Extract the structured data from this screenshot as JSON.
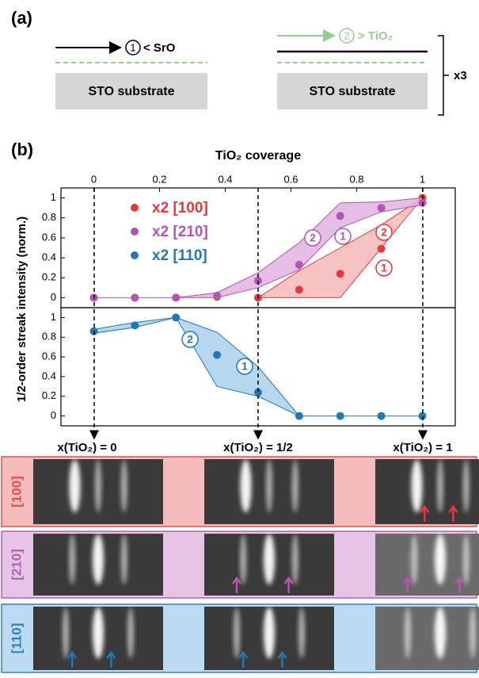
{
  "panel_a": {
    "label": "(a)",
    "step1_number": "1",
    "step1_text": "< SrO",
    "step2_number": "2",
    "step2_text": "> TiO₂",
    "substrate": "STO substrate",
    "repeat": "x3"
  },
  "label_b": "(b)",
  "annotations": {
    "sweep1": "1",
    "sweep2": "2"
  },
  "chart_data": [
    {
      "type": "scatter",
      "xlabel": "TiO₂ coverage",
      "ylabel": "1/2-order streak intensity (norm.)",
      "x": [
        0,
        0.125,
        0.25,
        0.375,
        0.5,
        0.625,
        0.75,
        0.875,
        1
      ],
      "xlim": [
        -0.1,
        1.1
      ],
      "xticks": [
        0,
        0.2,
        0.4,
        0.6,
        0.8,
        1
      ],
      "ylim": [
        -0.1,
        1.1
      ],
      "yticks": [
        0,
        0.2,
        0.4,
        0.6,
        0.8,
        1
      ],
      "series": [
        {
          "name": "x2 [100]",
          "color": "#e8393a",
          "band_color": "#f6b9b9",
          "values": [
            0,
            0,
            0,
            0.01,
            0,
            0.08,
            0.24,
            0.49,
            1
          ],
          "band_upper": [
            null,
            null,
            null,
            null,
            0,
            0.27,
            0.5,
            0.73,
            1
          ],
          "band_lower": [
            null,
            null,
            null,
            null,
            0,
            0,
            0,
            0.5,
            1
          ]
        },
        {
          "name": "x2 [210]",
          "color": "#b455b4",
          "band_color": "#dfb3df",
          "values": [
            0,
            0,
            0,
            0.02,
            0.17,
            0.33,
            0.82,
            0.9,
            0.95
          ],
          "band_upper": [
            0,
            0,
            0,
            0.05,
            0.25,
            0.55,
            0.95,
            0.96,
            1
          ],
          "band_lower": [
            0,
            0,
            0,
            0,
            0.1,
            0.28,
            0.7,
            0.86,
            0.93
          ]
        }
      ]
    },
    {
      "type": "scatter",
      "x": [
        0,
        0.125,
        0.25,
        0.375,
        0.5,
        0.625,
        0.75,
        0.875,
        1
      ],
      "xlim": [
        -0.1,
        1.1
      ],
      "ylim": [
        -0.1,
        1.1
      ],
      "yticks": [
        0,
        0.2,
        0.4,
        0.6,
        0.8,
        1
      ],
      "series": [
        {
          "name": "x2 [110]",
          "color": "#1f78b8",
          "band_color": "#a9d0ea",
          "values": [
            0.86,
            0.92,
            1,
            0.62,
            0.24,
            0,
            0,
            0,
            0
          ],
          "band_upper": [
            0.88,
            0.95,
            1,
            0.85,
            0.5,
            0,
            0,
            0,
            0
          ],
          "band_lower": [
            0.84,
            0.9,
            1,
            0.3,
            0.2,
            0,
            0,
            0,
            0
          ]
        }
      ]
    }
  ],
  "rheed": {
    "columns": [
      "x(TiO₂) = 0",
      "x(TiO₂) = 1/2",
      "x(TiO₂) = 1"
    ],
    "rows": [
      "[100]",
      "[210]",
      "[110]"
    ]
  }
}
